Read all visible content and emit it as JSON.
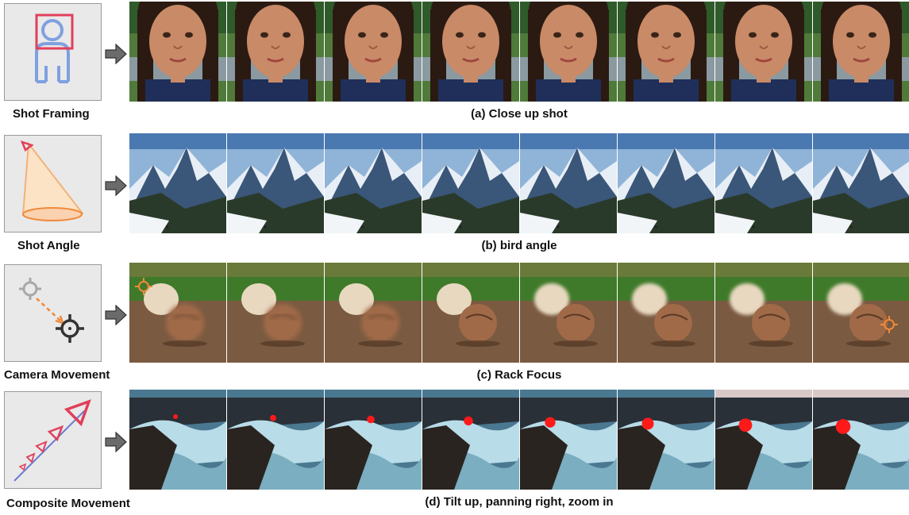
{
  "rows": [
    {
      "category": "Shot Framing",
      "caption": "(a) Close up shot",
      "icon": "person-framing-icon",
      "scene": "close-up-girl"
    },
    {
      "category": "Shot Angle",
      "caption": "(b) bird angle",
      "icon": "camera-cone-icon",
      "scene": "snowy-mountains"
    },
    {
      "category": "Camera Movement",
      "caption": "(c) Rack Focus",
      "icon": "focus-target-icon",
      "scene": "two-balls-on-dirt"
    },
    {
      "category": "Composite Movement",
      "caption": "(d) Tilt up, panning right, zoom in",
      "icon": "zoom-arrow-icon",
      "scene": "ocean-waves-on-rocks"
    }
  ],
  "frames_per_row": 8,
  "colors": {
    "accent_red": "#e0405a",
    "track_dot": "#ff1a1a",
    "focus_orange": "#f08a3a"
  }
}
